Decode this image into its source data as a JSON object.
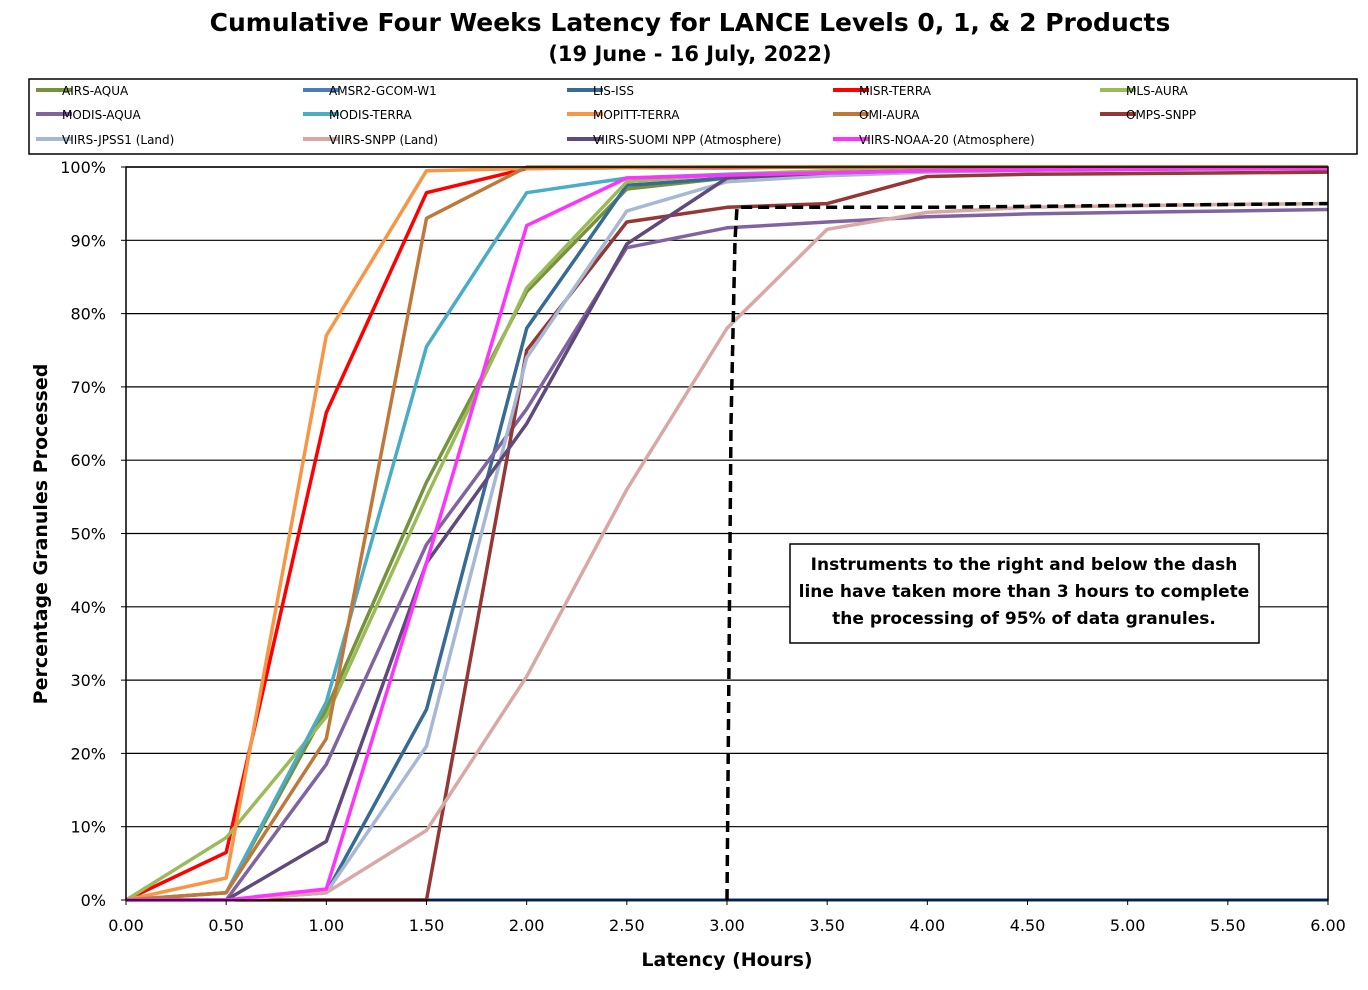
{
  "chart_data": {
    "type": "line",
    "title": "Cumulative Four Weeks Latency  for LANCE Levels 0, 1, & 2 Products",
    "subtitle": "(19  June   -  16  July,  2022)",
    "xlabel": "Latency (Hours)",
    "ylabel": "Percentage Granules Processed",
    "xlim": [
      0,
      6
    ],
    "ylim": [
      0,
      100
    ],
    "x": [
      0,
      0.5,
      1,
      1.5,
      2,
      2.5,
      3,
      3.5,
      4,
      4.5,
      5,
      5.5,
      6
    ],
    "x_tick_labels": [
      "0.00",
      "0.50",
      "1.00",
      "1.50",
      "2.00",
      "2.50",
      "3.00",
      "3.50",
      "4.00",
      "4.50",
      "5.00",
      "5.50",
      "6.00"
    ],
    "y_tick_labels": [
      "0%",
      "10%",
      "20%",
      "30%",
      "40%",
      "50%",
      "60%",
      "70%",
      "80%",
      "90%",
      "100%"
    ],
    "grid": "horizontal",
    "legend_position": "top",
    "series": [
      {
        "name": "AIRS-AQUA",
        "color": "#76923c",
        "values": [
          0,
          1,
          26,
          57,
          83,
          97,
          98.5,
          99.2,
          99.5,
          99.6,
          99.7,
          99.8,
          99.8
        ]
      },
      {
        "name": "AMSR2-GCOM-W1",
        "color": "#4a7ebb",
        "values": [
          0,
          0,
          0,
          0,
          0,
          0,
          0,
          0,
          0,
          0,
          0,
          0,
          0
        ]
      },
      {
        "name": "LIS-ISS",
        "color": "#386b94",
        "values": [
          0,
          0,
          1,
          26,
          78,
          97.5,
          98.5,
          99.2,
          99.5,
          99.6,
          99.7,
          99.8,
          99.8
        ]
      },
      {
        "name": "MISR-TERRA",
        "color": "#ff0000",
        "values": [
          0,
          6.5,
          66.5,
          96.5,
          99.8,
          99.9,
          99.9,
          100,
          100,
          100,
          100,
          100,
          100
        ]
      },
      {
        "name": "MLS-AURA",
        "color": "#9bbb59",
        "values": [
          0,
          8.5,
          25,
          55,
          83.5,
          98,
          99,
          99.5,
          99.7,
          99.8,
          99.8,
          99.9,
          99.9
        ]
      },
      {
        "name": "MODIS-AQUA",
        "color": "#8064a2",
        "values": [
          0,
          0,
          18.5,
          48.5,
          67,
          89,
          91.7,
          92.5,
          93.2,
          93.6,
          93.8,
          94,
          94.2
        ]
      },
      {
        "name": "MODIS-TERRA",
        "color": "#4bacc6",
        "values": [
          0,
          1,
          27,
          75.5,
          96.5,
          98.5,
          99,
          99.2,
          99.5,
          99.6,
          99.7,
          99.8,
          99.8
        ]
      },
      {
        "name": "MOPITT-TERRA",
        "color": "#f79646",
        "values": [
          0,
          3,
          77,
          99.5,
          99.8,
          99.9,
          100,
          100,
          100,
          100,
          100,
          100,
          100
        ]
      },
      {
        "name": "OMI-AURA",
        "color": "#c0783a",
        "values": [
          0,
          1,
          22,
          93,
          100,
          100,
          100,
          100,
          100,
          100,
          100,
          100,
          100
        ]
      },
      {
        "name": "OMPS-SNPP",
        "color": "#953735",
        "values": [
          0,
          0,
          0,
          0,
          75,
          92.5,
          94.5,
          95,
          98.7,
          99,
          99.1,
          99.2,
          99.3
        ]
      },
      {
        "name": "VIIRS-JPSS1 (Land)",
        "color": "#a6b8d4",
        "values": [
          0,
          0,
          1,
          21,
          74,
          94,
          98,
          98.8,
          99.3,
          99.5,
          99.6,
          99.7,
          99.8
        ]
      },
      {
        "name": "VIIRS-SNPP (Land)",
        "color": "#d9a8a5",
        "values": [
          0,
          0,
          1,
          9.5,
          30.5,
          56,
          78,
          91.5,
          93.8,
          94.5,
          94.7,
          94.9,
          95
        ]
      },
      {
        "name": "VIIRS-SUOMI NPP (Atmosphere)",
        "color": "#604a7b",
        "values": [
          0,
          0,
          8,
          46,
          65,
          89.5,
          98.5,
          99.2,
          99.5,
          99.6,
          99.7,
          99.8,
          99.8
        ]
      },
      {
        "name": "VIIRS-NOAA-20 (Atmosphere)",
        "color": "#ff33ff",
        "values": [
          0,
          0,
          1.5,
          46,
          92,
          98.5,
          98.9,
          99.2,
          99.5,
          99.6,
          99.7,
          99.8,
          99.8
        ]
      }
    ],
    "threshold_line": {
      "style": "dashed",
      "color": "#000000",
      "points": [
        [
          3,
          0
        ],
        [
          3.02,
          65
        ],
        [
          3.04,
          90
        ],
        [
          3.05,
          94.5
        ],
        [
          4,
          94.5
        ],
        [
          6,
          95
        ]
      ]
    },
    "annotation": {
      "lines": [
        "Instruments to the right and below the dash",
        "line have taken more than 3 hours to complete",
        "the processing of 95% of data granules."
      ]
    }
  }
}
